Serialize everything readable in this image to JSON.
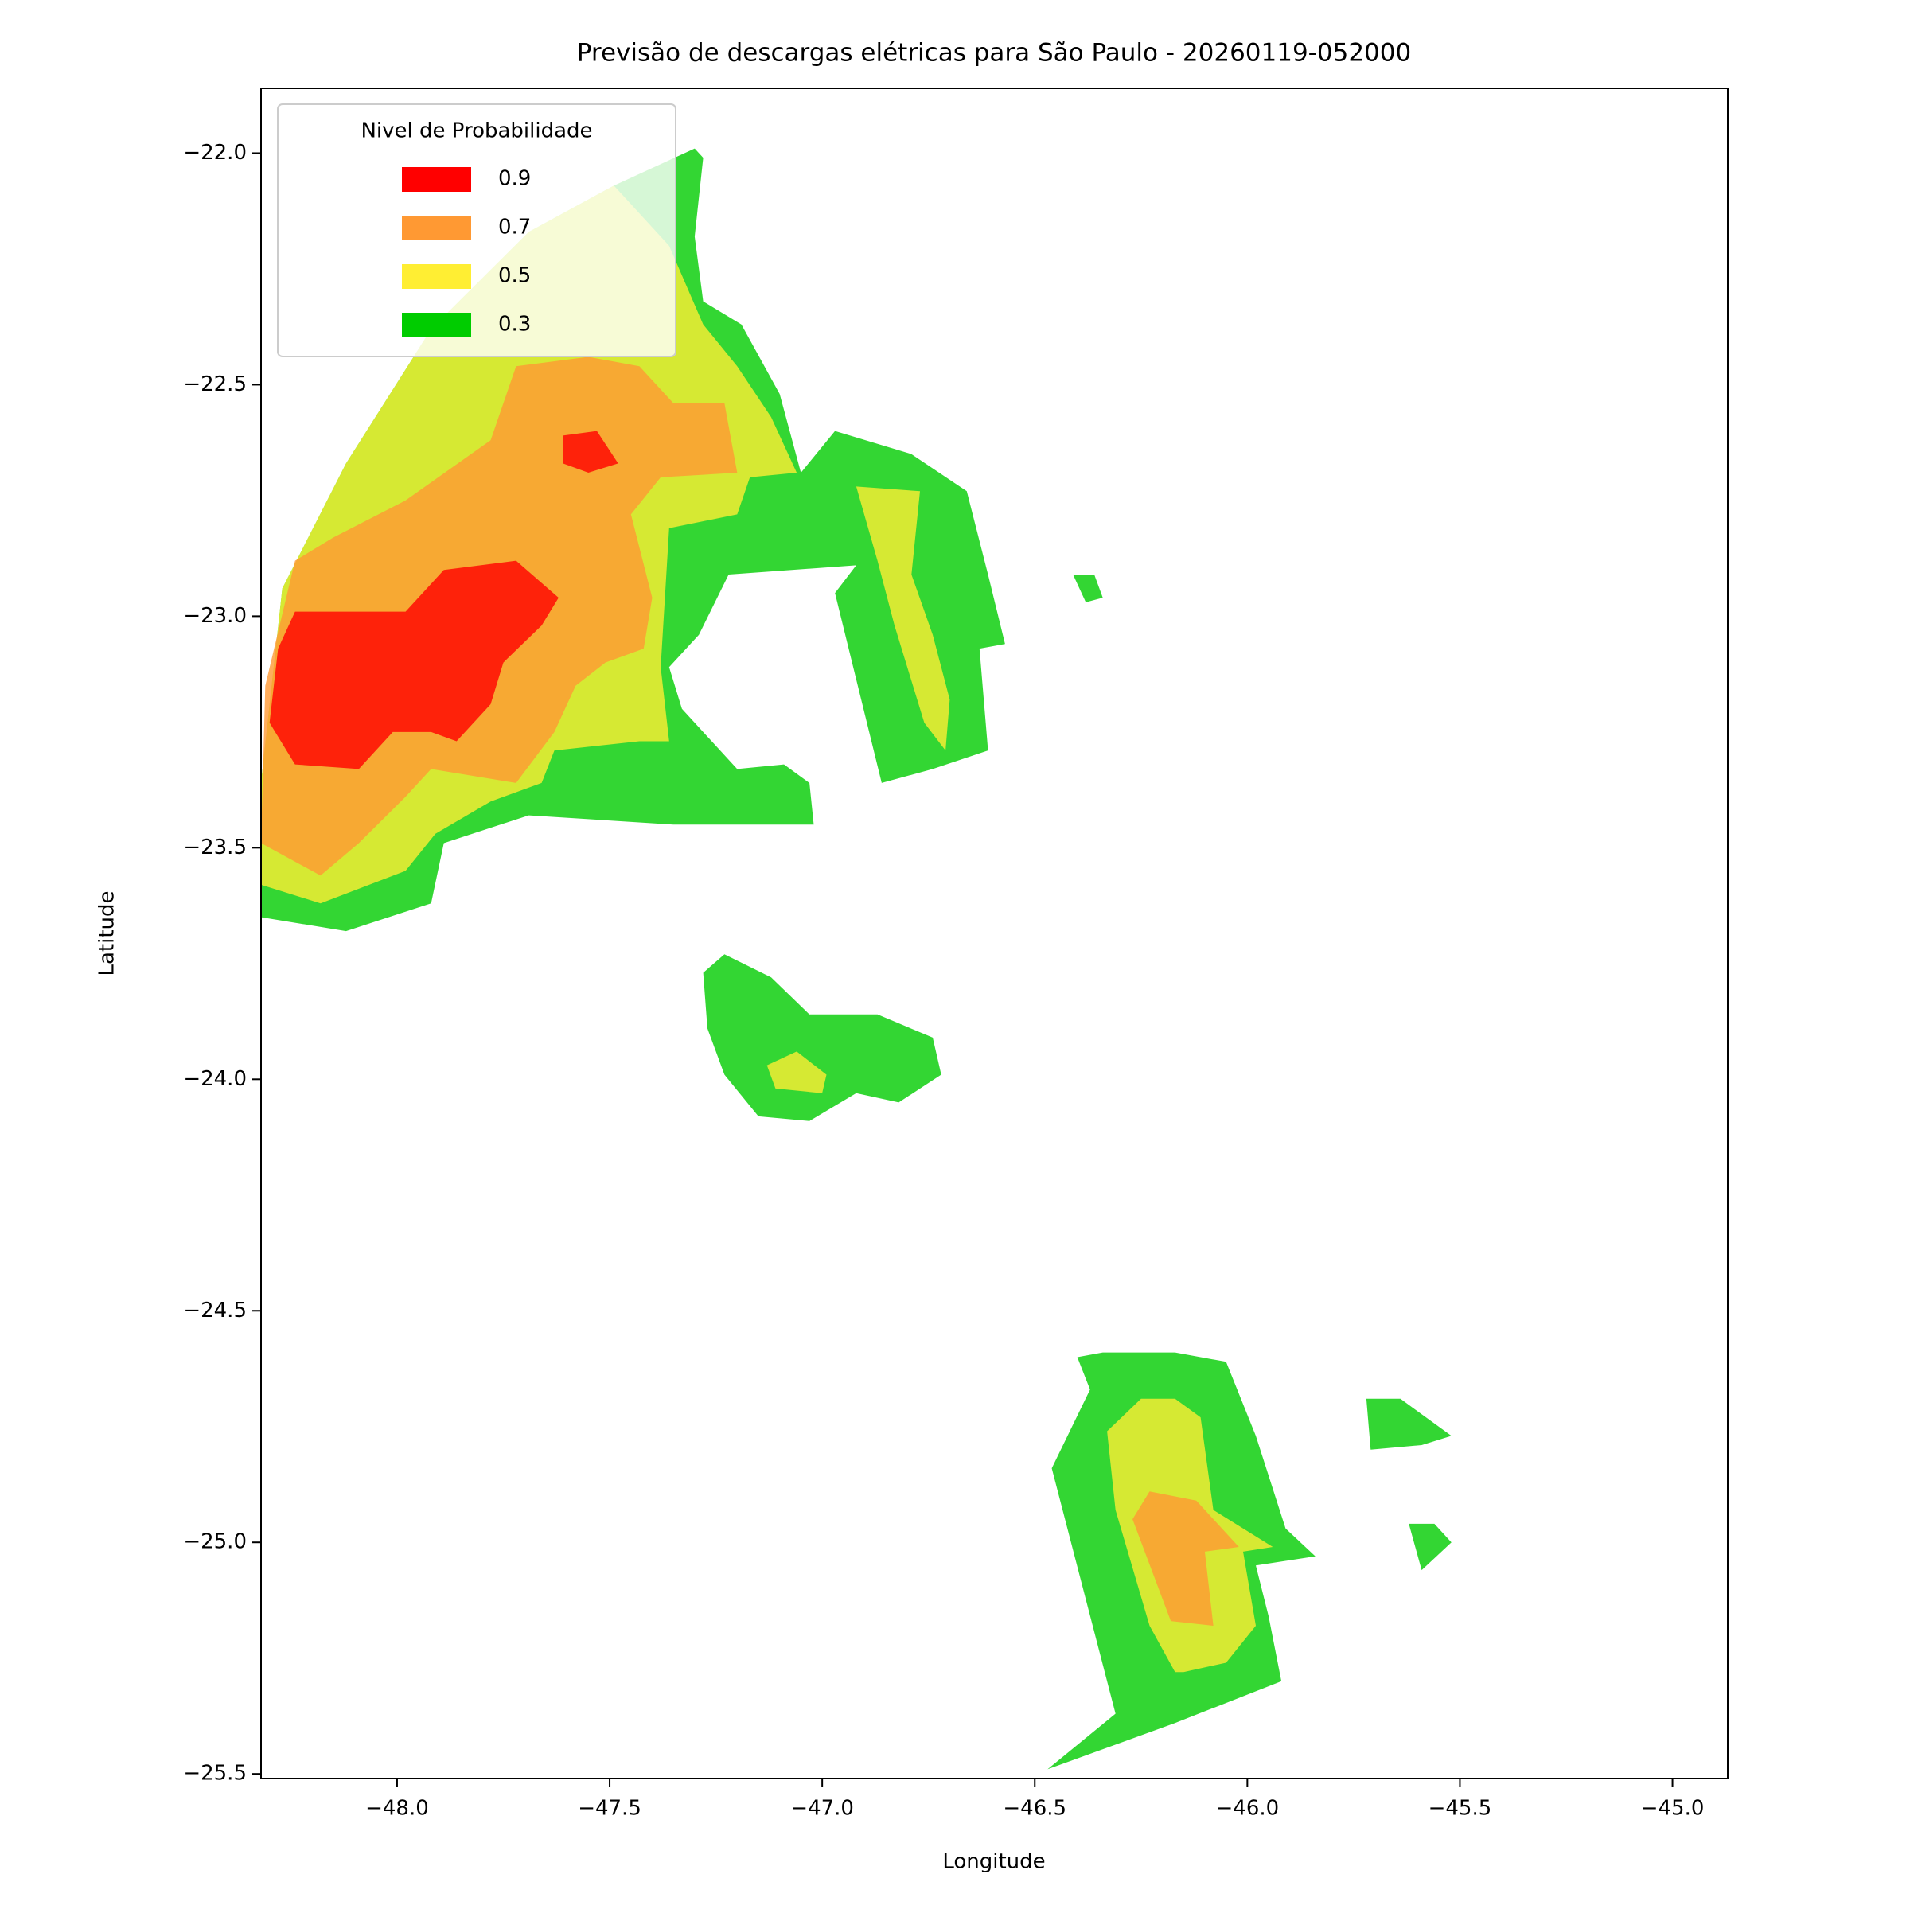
{
  "chart_data": {
    "type": "contour-map",
    "title": "Previsão de descargas elétricas para São Paulo - 20260119-052000",
    "x_label": "Longitude",
    "y_label": "Latitude",
    "xlim": [
      -48.32,
      -44.87
    ],
    "ylim": [
      -25.51,
      -21.86
    ],
    "xticks": [
      {
        "value": -48.0,
        "label": "−48.0"
      },
      {
        "value": -47.5,
        "label": "−47.5"
      },
      {
        "value": -47.0,
        "label": "−47.0"
      },
      {
        "value": -46.5,
        "label": "−46.5"
      },
      {
        "value": -46.0,
        "label": "−46.0"
      },
      {
        "value": -45.5,
        "label": "−45.5"
      },
      {
        "value": -45.0,
        "label": "−45.0"
      }
    ],
    "yticks": [
      {
        "value": -22.0,
        "label": "−22.0"
      },
      {
        "value": -22.5,
        "label": "−22.5"
      },
      {
        "value": -23.0,
        "label": "−23.0"
      },
      {
        "value": -23.5,
        "label": "−23.5"
      },
      {
        "value": -24.0,
        "label": "−24.0"
      },
      {
        "value": -24.5,
        "label": "−24.5"
      },
      {
        "value": -25.0,
        "label": "−25.0"
      },
      {
        "value": -25.5,
        "label": "−25.5"
      }
    ],
    "legend_title": "Nivel de Probabilidade",
    "legend": "upper left",
    "series": [
      {
        "name": "0.9",
        "color": "#ff0000",
        "polygons": [
          {
            "lon": [
              -48.3,
              -48.24,
              -48.09,
              -48.01,
              -47.92,
              -47.86,
              -47.78,
              -47.75,
              -47.66,
              -47.62,
              -47.72,
              -47.89,
              -47.98,
              -48.24,
              -48.28
            ],
            "lat": [
              -23.23,
              -23.32,
              -23.33,
              -23.25,
              -23.25,
              -23.27,
              -23.19,
              -23.1,
              -23.02,
              -22.96,
              -22.88,
              -22.9,
              -22.99,
              -22.99,
              -23.07
            ]
          },
          {
            "lon": [
              -47.61,
              -47.53,
              -47.48,
              -47.55,
              -47.61
            ],
            "lat": [
              -22.61,
              -22.6,
              -22.67,
              -22.69,
              -22.67
            ]
          }
        ]
      },
      {
        "name": "0.7",
        "color": "#ff9933",
        "polygons": [
          {
            "lon": [
              -48.32,
              -48.18,
              -48.09,
              -47.98,
              -47.92,
              -47.72,
              -47.63,
              -47.58,
              -47.51,
              -47.42,
              -47.4,
              -47.45,
              -47.38,
              -47.2,
              -47.23,
              -47.35,
              -47.43,
              -47.55,
              -47.72,
              -47.78,
              -47.98,
              -48.15,
              -48.24,
              -48.31
            ],
            "lat": [
              -23.49,
              -23.56,
              -23.49,
              -23.39,
              -23.33,
              -23.36,
              -23.25,
              -23.15,
              -23.1,
              -23.07,
              -22.96,
              -22.78,
              -22.7,
              -22.69,
              -22.54,
              -22.54,
              -22.46,
              -22.44,
              -22.46,
              -22.62,
              -22.75,
              -22.83,
              -22.88,
              -23.15
            ]
          },
          {
            "lon": [
              -46.18,
              -46.08,
              -46.1,
              -46.02,
              -46.12,
              -46.23,
              -46.27
            ],
            "lat": [
              -25.17,
              -25.18,
              -25.02,
              -25.01,
              -24.91,
              -24.89,
              -24.95
            ]
          }
        ]
      },
      {
        "name": "0.5",
        "color": "#ffee33",
        "polygons": [
          {
            "lon": [
              -48.32,
              -48.18,
              -47.98,
              -47.91,
              -47.78,
              -47.66,
              -47.63,
              -47.43,
              -47.36,
              -47.38,
              -47.36,
              -47.2,
              -47.17,
              -47.06,
              -47.12,
              -47.2,
              -47.28,
              -47.36,
              -47.49,
              -47.69,
              -47.92,
              -48.12,
              -48.27,
              -48.32
            ],
            "lat": [
              -23.58,
              -23.62,
              -23.55,
              -23.47,
              -23.4,
              -23.36,
              -23.29,
              -23.27,
              -23.27,
              -23.11,
              -22.81,
              -22.78,
              -22.7,
              -22.69,
              -22.57,
              -22.46,
              -22.37,
              -22.2,
              -22.07,
              -22.17,
              -22.38,
              -22.67,
              -22.94,
              -23.36
            ]
          },
          {
            "lon": [
              -46.92,
              -46.77,
              -46.79,
              -46.74,
              -46.7,
              -46.71,
              -46.76,
              -46.83,
              -46.87
            ],
            "lat": [
              -22.72,
              -22.73,
              -22.91,
              -23.04,
              -23.18,
              -23.29,
              -23.23,
              -23.02,
              -22.88
            ]
          },
          {
            "lon": [
              -46.15,
              -46.05,
              -45.98,
              -46.01,
              -45.94,
              -46.08,
              -46.11,
              -46.17,
              -46.25,
              -46.33,
              -46.31,
              -46.23,
              -46.17
            ],
            "lat": [
              -25.28,
              -25.26,
              -25.18,
              -25.02,
              -25.01,
              -24.93,
              -24.73,
              -24.69,
              -24.69,
              -24.76,
              -24.93,
              -25.18,
              -25.28
            ]
          },
          {
            "lon": [
              -47.13,
              -47.06,
              -46.99,
              -47.0,
              -47.11
            ],
            "lat": [
              -23.97,
              -23.94,
              -23.99,
              -24.03,
              -24.02
            ]
          }
        ]
      },
      {
        "name": "0.3",
        "color": "#00cc00",
        "polygons": [
          {
            "lon": [
              -48.32,
              -48.12,
              -47.92,
              -47.89,
              -47.69,
              -47.35,
              -47.02,
              -47.03,
              -47.09,
              -47.2,
              -47.26,
              -47.33,
              -47.36,
              -47.29,
              -47.22,
              -46.92,
              -46.97,
              -46.86,
              -46.74,
              -46.61,
              -46.63,
              -46.57,
              -46.61,
              -46.66,
              -46.79,
              -46.97,
              -47.05,
              -47.1,
              -47.19,
              -47.28,
              -47.3,
              -47.28,
              -47.3,
              -47.49,
              -47.69,
              -47.92,
              -48.12,
              -48.27,
              -48.32
            ],
            "lat": [
              -23.65,
              -23.68,
              -23.62,
              -23.49,
              -23.43,
              -23.45,
              -23.45,
              -23.36,
              -23.32,
              -23.33,
              -23.27,
              -23.2,
              -23.11,
              -23.04,
              -22.91,
              -22.89,
              -22.95,
              -23.36,
              -23.33,
              -23.29,
              -23.07,
              -23.06,
              -22.91,
              -22.73,
              -22.65,
              -22.6,
              -22.69,
              -22.52,
              -22.37,
              -22.32,
              -22.18,
              -22.01,
              -21.99,
              -22.07,
              -22.17,
              -22.38,
              -22.67,
              -22.94,
              -23.36
            ]
          },
          {
            "lon": [
              -46.47,
              -46.17,
              -45.92,
              -45.95,
              -45.98,
              -45.84,
              -45.91,
              -45.98,
              -46.05,
              -46.17,
              -46.34,
              -46.4,
              -46.37,
              -46.46,
              -46.31
            ],
            "lat": [
              -25.49,
              -25.39,
              -25.3,
              -25.16,
              -25.05,
              -25.03,
              -24.97,
              -24.77,
              -24.61,
              -24.59,
              -24.59,
              -24.6,
              -24.67,
              -24.84,
              -25.37
            ]
          },
          {
            "lon": [
              -47.28,
              -47.23,
              -47.12,
              -47.03,
              -46.87,
              -46.74,
              -46.72,
              -46.82,
              -46.92,
              -47.03,
              -47.15,
              -47.23,
              -47.27
            ],
            "lat": [
              -23.77,
              -23.73,
              -23.78,
              -23.86,
              -23.86,
              -23.91,
              -23.99,
              -24.05,
              -24.03,
              -24.09,
              -24.08,
              -23.99,
              -23.89
            ]
          },
          {
            "lon": [
              -45.72,
              -45.64,
              -45.52,
              -45.59,
              -45.71
            ],
            "lat": [
              -24.69,
              -24.69,
              -24.77,
              -24.79,
              -24.8
            ]
          },
          {
            "lon": [
              -45.62,
              -45.56,
              -45.52,
              -45.59
            ],
            "lat": [
              -24.96,
              -24.96,
              -25.0,
              -25.06
            ]
          },
          {
            "lon": [
              -46.41,
              -46.36,
              -46.34,
              -46.38
            ],
            "lat": [
              -22.91,
              -22.91,
              -22.96,
              -22.97
            ]
          }
        ]
      }
    ]
  }
}
